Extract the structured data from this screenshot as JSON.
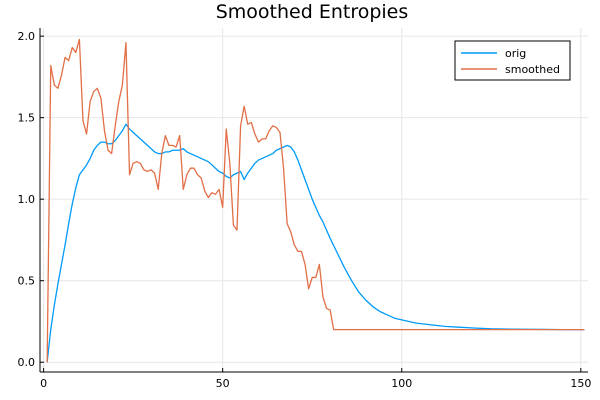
{
  "chart_data": {
    "type": "line",
    "title": "Smoothed Entropies",
    "xlabel": "",
    "ylabel": "",
    "xlim": [
      -1,
      152
    ],
    "ylim": [
      -0.06,
      2.05
    ],
    "xticks": [
      0,
      50,
      100,
      150
    ],
    "xtick_labels": [
      "0",
      "50",
      "100",
      "150"
    ],
    "yticks": [
      0.0,
      0.5,
      1.0,
      1.5,
      2.0
    ],
    "ytick_labels": [
      "0.0",
      "0.5",
      "1.0",
      "1.5",
      "2.0"
    ],
    "grid": true,
    "legend_position": "top-right",
    "series": [
      {
        "name": "orig",
        "color": "#009AFA",
        "points": [
          [
            1,
            0.0
          ],
          [
            2,
            0.2
          ],
          [
            3,
            0.35
          ],
          [
            4,
            0.48
          ],
          [
            5,
            0.6
          ],
          [
            6,
            0.72
          ],
          [
            7,
            0.85
          ],
          [
            8,
            0.97
          ],
          [
            9,
            1.07
          ],
          [
            10,
            1.15
          ],
          [
            11,
            1.18
          ],
          [
            12,
            1.21
          ],
          [
            13,
            1.25
          ],
          [
            14,
            1.3
          ],
          [
            15,
            1.33
          ],
          [
            16,
            1.35
          ],
          [
            17,
            1.35
          ],
          [
            18,
            1.34
          ],
          [
            19,
            1.34
          ],
          [
            20,
            1.36
          ],
          [
            21,
            1.39
          ],
          [
            22,
            1.42
          ],
          [
            23,
            1.46
          ],
          [
            24,
            1.43
          ],
          [
            25,
            1.41
          ],
          [
            26,
            1.39
          ],
          [
            27,
            1.37
          ],
          [
            28,
            1.35
          ],
          [
            29,
            1.33
          ],
          [
            30,
            1.31
          ],
          [
            31,
            1.29
          ],
          [
            32,
            1.28
          ],
          [
            33,
            1.28
          ],
          [
            34,
            1.29
          ],
          [
            35,
            1.29
          ],
          [
            36,
            1.3
          ],
          [
            37,
            1.3
          ],
          [
            38,
            1.3
          ],
          [
            39,
            1.31
          ],
          [
            40,
            1.29
          ],
          [
            41,
            1.28
          ],
          [
            42,
            1.27
          ],
          [
            43,
            1.26
          ],
          [
            44,
            1.25
          ],
          [
            45,
            1.24
          ],
          [
            46,
            1.23
          ],
          [
            47,
            1.21
          ],
          [
            48,
            1.19
          ],
          [
            49,
            1.17
          ],
          [
            50,
            1.16
          ],
          [
            51,
            1.14
          ],
          [
            52,
            1.13
          ],
          [
            53,
            1.15
          ],
          [
            54,
            1.16
          ],
          [
            55,
            1.17
          ],
          [
            56,
            1.12
          ],
          [
            57,
            1.16
          ],
          [
            58,
            1.19
          ],
          [
            59,
            1.22
          ],
          [
            60,
            1.24
          ],
          [
            61,
            1.25
          ],
          [
            62,
            1.26
          ],
          [
            63,
            1.27
          ],
          [
            64,
            1.28
          ],
          [
            65,
            1.3
          ],
          [
            66,
            1.31
          ],
          [
            67,
            1.32
          ],
          [
            68,
            1.33
          ],
          [
            69,
            1.32
          ],
          [
            70,
            1.29
          ],
          [
            71,
            1.24
          ],
          [
            72,
            1.18
          ],
          [
            73,
            1.12
          ],
          [
            74,
            1.06
          ],
          [
            75,
            1.0
          ],
          [
            76,
            0.95
          ],
          [
            77,
            0.9
          ],
          [
            78,
            0.86
          ],
          [
            79,
            0.81
          ],
          [
            80,
            0.76
          ],
          [
            82,
            0.67
          ],
          [
            84,
            0.58
          ],
          [
            86,
            0.5
          ],
          [
            88,
            0.43
          ],
          [
            90,
            0.38
          ],
          [
            92,
            0.34
          ],
          [
            94,
            0.31
          ],
          [
            96,
            0.29
          ],
          [
            98,
            0.27
          ],
          [
            100,
            0.26
          ],
          [
            104,
            0.24
          ],
          [
            108,
            0.23
          ],
          [
            112,
            0.22
          ],
          [
            116,
            0.215
          ],
          [
            120,
            0.21
          ],
          [
            125,
            0.205
          ],
          [
            130,
            0.203
          ],
          [
            135,
            0.202
          ],
          [
            140,
            0.201
          ],
          [
            145,
            0.2
          ],
          [
            151,
            0.2
          ]
        ]
      },
      {
        "name": "smoothed",
        "color": "#E26F46",
        "points": [
          [
            1,
            0.0
          ],
          [
            2,
            1.82
          ],
          [
            3,
            1.7
          ],
          [
            4,
            1.68
          ],
          [
            5,
            1.76
          ],
          [
            6,
            1.87
          ],
          [
            7,
            1.85
          ],
          [
            8,
            1.93
          ],
          [
            9,
            1.9
          ],
          [
            10,
            1.98
          ],
          [
            11,
            1.48
          ],
          [
            12,
            1.4
          ],
          [
            13,
            1.6
          ],
          [
            14,
            1.66
          ],
          [
            15,
            1.68
          ],
          [
            16,
            1.62
          ],
          [
            17,
            1.42
          ],
          [
            18,
            1.3
          ],
          [
            19,
            1.28
          ],
          [
            20,
            1.45
          ],
          [
            21,
            1.6
          ],
          [
            22,
            1.7
          ],
          [
            23,
            1.96
          ],
          [
            24,
            1.15
          ],
          [
            25,
            1.22
          ],
          [
            26,
            1.23
          ],
          [
            27,
            1.22
          ],
          [
            28,
            1.18
          ],
          [
            29,
            1.17
          ],
          [
            30,
            1.18
          ],
          [
            31,
            1.16
          ],
          [
            32,
            1.06
          ],
          [
            33,
            1.28
          ],
          [
            34,
            1.39
          ],
          [
            35,
            1.33
          ],
          [
            36,
            1.33
          ],
          [
            37,
            1.32
          ],
          [
            38,
            1.39
          ],
          [
            39,
            1.06
          ],
          [
            40,
            1.15
          ],
          [
            41,
            1.19
          ],
          [
            42,
            1.19
          ],
          [
            43,
            1.15
          ],
          [
            44,
            1.13
          ],
          [
            45,
            1.05
          ],
          [
            46,
            1.01
          ],
          [
            47,
            1.04
          ],
          [
            48,
            1.03
          ],
          [
            49,
            1.06
          ],
          [
            50,
            0.95
          ],
          [
            51,
            1.43
          ],
          [
            52,
            1.22
          ],
          [
            53,
            0.84
          ],
          [
            54,
            0.81
          ],
          [
            55,
            1.45
          ],
          [
            56,
            1.57
          ],
          [
            57,
            1.46
          ],
          [
            58,
            1.47
          ],
          [
            59,
            1.4
          ],
          [
            60,
            1.35
          ],
          [
            61,
            1.37
          ],
          [
            62,
            1.37
          ],
          [
            63,
            1.42
          ],
          [
            64,
            1.45
          ],
          [
            65,
            1.44
          ],
          [
            66,
            1.41
          ],
          [
            67,
            1.19
          ],
          [
            68,
            0.85
          ],
          [
            69,
            0.8
          ],
          [
            70,
            0.72
          ],
          [
            71,
            0.68
          ],
          [
            72,
            0.68
          ],
          [
            73,
            0.6
          ],
          [
            74,
            0.45
          ],
          [
            75,
            0.52
          ],
          [
            76,
            0.52
          ],
          [
            77,
            0.6
          ],
          [
            78,
            0.4
          ],
          [
            79,
            0.33
          ],
          [
            80,
            0.32
          ],
          [
            81,
            0.2
          ],
          [
            100,
            0.2
          ],
          [
            151,
            0.2
          ]
        ]
      }
    ]
  }
}
